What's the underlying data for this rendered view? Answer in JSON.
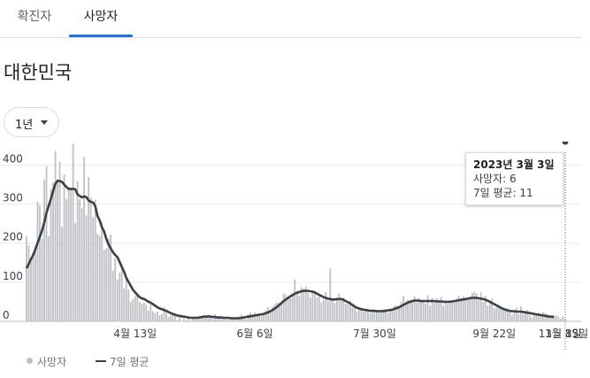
{
  "tabs": [
    {
      "label": "확진자",
      "selected": false
    },
    {
      "label": "사망자",
      "selected": true
    }
  ],
  "region": "대한민국",
  "range_dropdown": {
    "value": "1년"
  },
  "tooltip": {
    "date": "2023년 3월 3일",
    "deaths": "사망자: 6",
    "avg": "7일 평균: 11"
  },
  "legend": {
    "deaths": "사망자",
    "avg": "7일 평균"
  },
  "colors": {
    "bar": "#bdc1c6",
    "line": "#3c4043",
    "accent": "#1a73e8"
  },
  "chart_data": {
    "type": "bar",
    "title": "",
    "ylim": [
      0,
      460
    ],
    "yticks": [
      0,
      100,
      200,
      300,
      400
    ],
    "xticks": [
      "4월 13일",
      "6월 6일",
      "7월 30일",
      "9월 22일",
      "11월 15일",
      "1월 8일",
      "3월 3일"
    ],
    "grid": true,
    "series": [
      {
        "name": "사망자",
        "type": "bar",
        "values": [
          218,
          194,
          154,
          171,
          190,
          306,
          297,
          212,
          363,
          397,
          218,
          339,
          356,
          436,
          355,
          408,
          242,
          376,
          313,
          343,
          337,
          454,
          252,
          359,
          313,
          290,
          421,
          272,
          369,
          317,
          267,
          311,
          224,
          219,
          253,
          183,
          187,
          212,
          222,
          130,
          161,
          107,
          125,
          138,
          84,
          108,
          81,
          50,
          57,
          64,
          70,
          49,
          45,
          47,
          42,
          27,
          47,
          26,
          21,
          25,
          16,
          18,
          36,
          27,
          11,
          16,
          18,
          15,
          3,
          10,
          0,
          7,
          2,
          9,
          2,
          11,
          12,
          9,
          13,
          11,
          16,
          11,
          9,
          10,
          6,
          18,
          8,
          13,
          8,
          7,
          9,
          3,
          9,
          10,
          6,
          11,
          13,
          17,
          9,
          5,
          17,
          22,
          13,
          22,
          18,
          14,
          13,
          21,
          28,
          37,
          28,
          37,
          45,
          48,
          47,
          48,
          72,
          68,
          57,
          59,
          71,
          107,
          79,
          65,
          88,
          84,
          89,
          73,
          61,
          76,
          78,
          61,
          65,
          48,
          56,
          75,
          53,
          135,
          59,
          47,
          59,
          71,
          54,
          61,
          45,
          45,
          52,
          37,
          40,
          25,
          34,
          32,
          24,
          28,
          32,
          21,
          29,
          24,
          26,
          23,
          27,
          32,
          32,
          22,
          32,
          29,
          40,
          39,
          38,
          50,
          65,
          50,
          55,
          55,
          55,
          64,
          48,
          60,
          51,
          51,
          45,
          67,
          40,
          60,
          48,
          59,
          51,
          62,
          40,
          48,
          45,
          47,
          52,
          51,
          58,
          66,
          58,
          64,
          55,
          59,
          64,
          72,
          76,
          71,
          54,
          74,
          50,
          65,
          40,
          53,
          58,
          33,
          38,
          41,
          34,
          34,
          30,
          33,
          25,
          15,
          26,
          35,
          18,
          38,
          21,
          27,
          29,
          16,
          10,
          18,
          19,
          22,
          19,
          24,
          21,
          18,
          14,
          12,
          10,
          15,
          11,
          7,
          13,
          6
        ]
      },
      {
        "name": "7일 평균",
        "type": "line",
        "values": [
          136,
          147,
          159,
          170,
          185,
          201,
          216,
          232,
          253,
          278,
          296,
          314,
          334,
          352,
          360,
          359,
          357,
          350,
          344,
          339,
          339,
          339,
          338,
          325,
          321,
          317,
          320,
          318,
          309,
          306,
          304,
          295,
          270,
          258,
          241,
          230,
          211,
          197,
          187,
          177,
          170,
          164,
          152,
          139,
          127,
          111,
          101,
          91,
          81,
          74,
          68,
          62,
          59,
          57,
          54,
          50,
          48,
          44,
          40,
          36,
          33,
          31,
          29,
          27,
          24,
          21,
          19,
          17,
          15,
          14,
          13,
          12,
          11,
          10,
          9,
          9,
          9,
          9,
          10,
          11,
          12,
          12,
          13,
          12,
          11,
          11,
          10,
          10,
          10,
          9,
          9,
          9,
          8,
          8,
          8,
          8,
          8,
          9,
          10,
          11,
          12,
          13,
          14,
          15,
          16,
          17,
          18,
          19,
          21,
          23,
          26,
          29,
          33,
          37,
          42,
          47,
          52,
          56,
          60,
          64,
          67,
          71,
          73,
          75,
          77,
          78,
          78,
          78,
          77,
          76,
          74,
          71,
          68,
          65,
          62,
          60,
          58,
          57,
          56,
          56,
          57,
          57,
          57,
          55,
          52,
          49,
          46,
          42,
          38,
          35,
          33,
          31,
          30,
          29,
          28,
          27,
          27,
          27,
          26,
          26,
          26,
          26,
          27,
          28,
          29,
          30,
          32,
          34,
          36,
          39,
          42,
          45,
          48,
          50,
          52,
          53,
          53,
          53,
          52,
          52,
          52,
          52,
          52,
          52,
          52,
          51,
          51,
          51,
          50,
          50,
          50,
          50,
          51,
          52,
          53,
          54,
          55,
          56,
          57,
          58,
          59,
          60,
          60,
          60,
          59,
          58,
          57,
          55,
          53,
          50,
          47,
          44,
          41,
          38,
          35,
          32,
          30,
          28,
          27,
          26,
          26,
          25,
          25,
          25,
          24,
          23,
          22,
          21,
          20,
          19,
          18,
          17,
          16,
          15,
          14,
          13,
          12,
          12,
          11
        ]
      }
    ]
  }
}
